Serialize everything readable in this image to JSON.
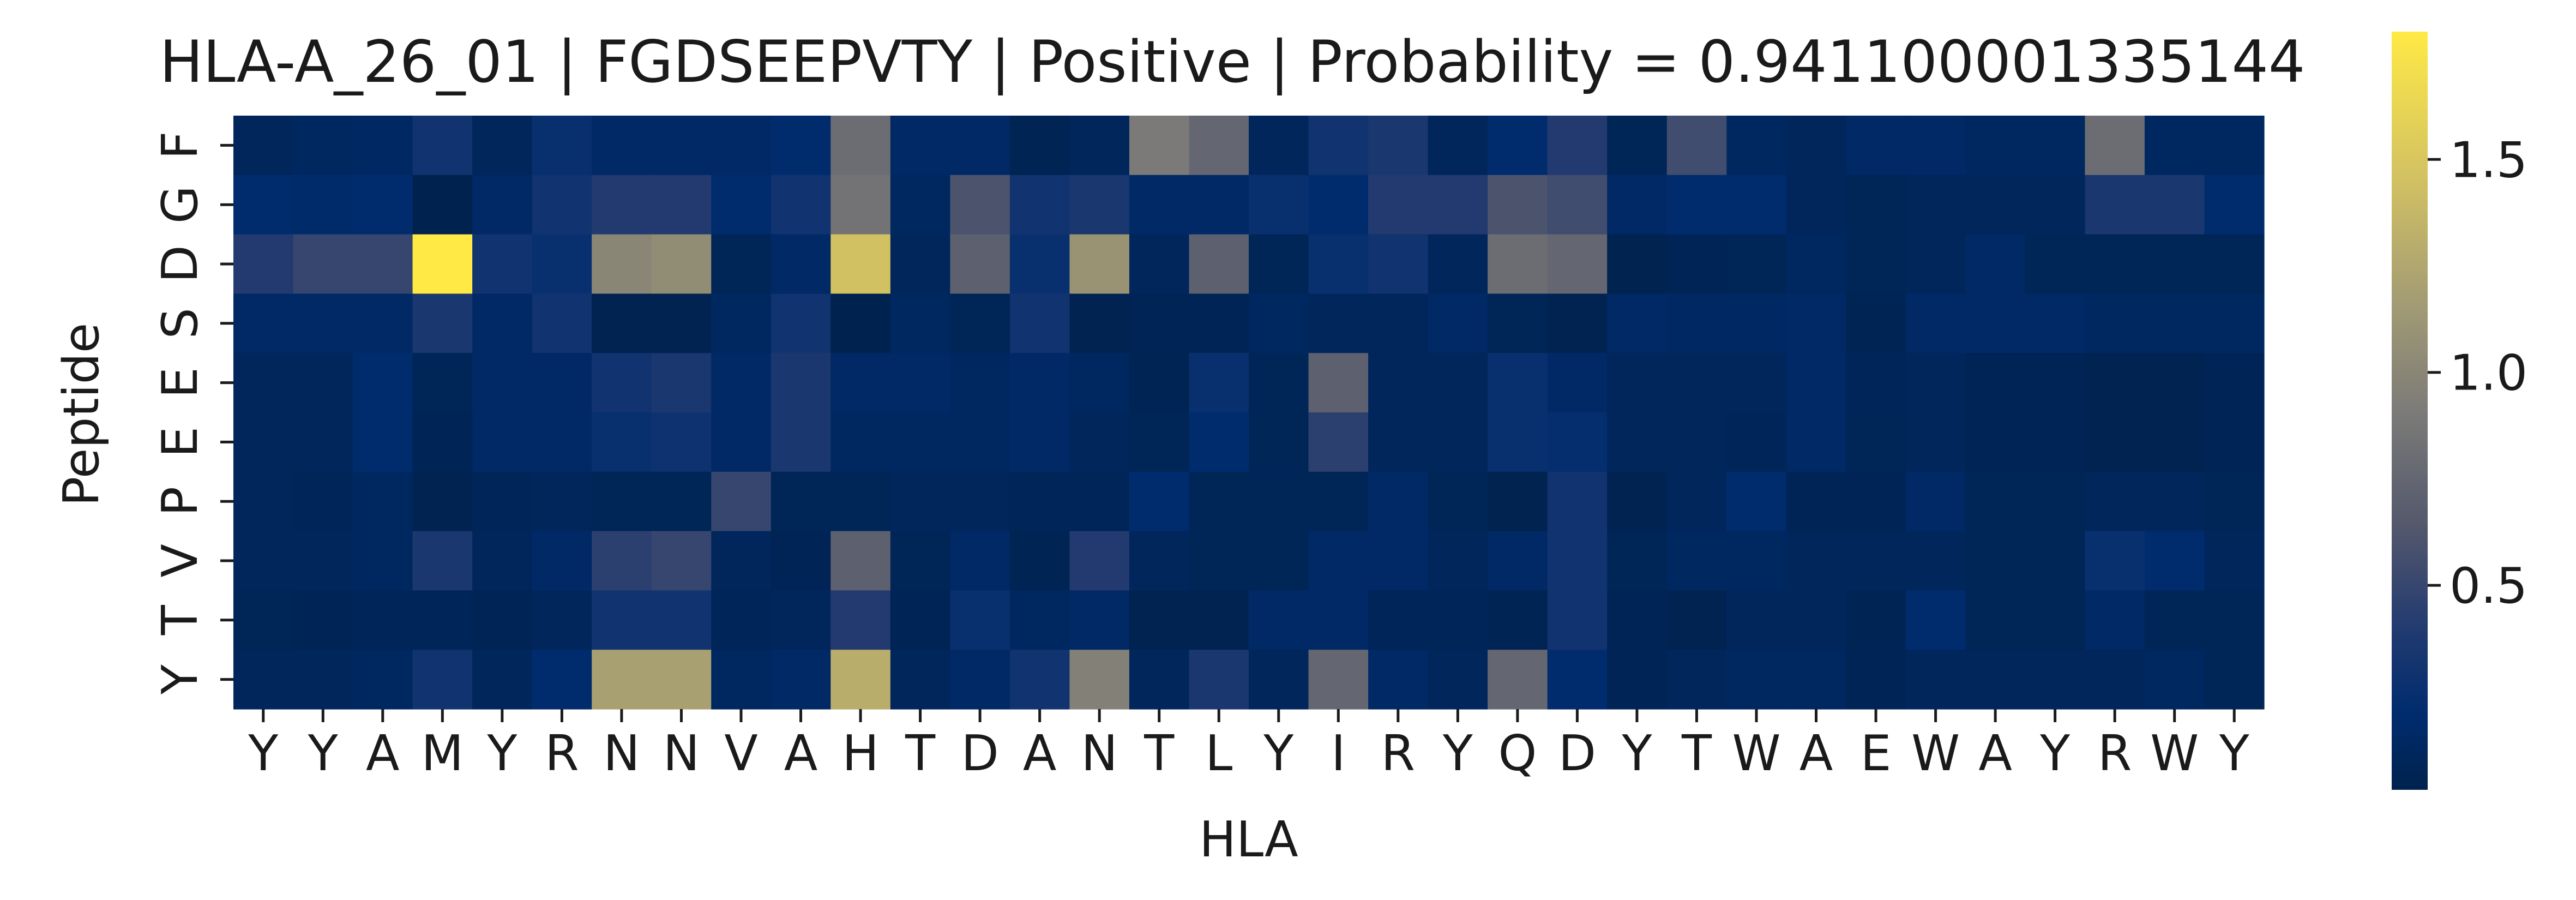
{
  "chart_data": {
    "type": "heatmap",
    "title": "HLA-A_26_01 | FGDSEEPVTY | Positive | Probability = 0.941100001335144",
    "xlabel": "HLA",
    "ylabel": "Peptide",
    "x_labels": [
      "Y",
      "Y",
      "A",
      "M",
      "Y",
      "R",
      "N",
      "N",
      "V",
      "A",
      "H",
      "T",
      "D",
      "A",
      "N",
      "T",
      "L",
      "Y",
      "I",
      "R",
      "Y",
      "Q",
      "D",
      "Y",
      "T",
      "W",
      "A",
      "E",
      "W",
      "A",
      "Y",
      "R",
      "W",
      "Y"
    ],
    "y_labels": [
      "F",
      "G",
      "D",
      "S",
      "E",
      "E",
      "P",
      "V",
      "T",
      "Y"
    ],
    "colorbar": {
      "colormap": "cividis",
      "vmin": 0.02,
      "vmax": 1.8,
      "ticks": [
        0.5,
        1.0,
        1.5
      ],
      "tick_labels": [
        "0.5",
        "1.0",
        "1.5"
      ]
    },
    "values": [
      [
        0.1,
        0.12,
        0.13,
        0.3,
        0.1,
        0.25,
        0.15,
        0.15,
        0.15,
        0.2,
        0.8,
        0.15,
        0.15,
        0.05,
        0.1,
        0.9,
        0.75,
        0.1,
        0.3,
        0.35,
        0.1,
        0.2,
        0.4,
        0.07,
        0.55,
        0.12,
        0.1,
        0.15,
        0.15,
        0.12,
        0.12,
        0.8,
        0.12,
        0.12
      ],
      [
        0.2,
        0.18,
        0.2,
        0.02,
        0.15,
        0.3,
        0.4,
        0.4,
        0.2,
        0.3,
        0.85,
        0.12,
        0.6,
        0.3,
        0.35,
        0.15,
        0.15,
        0.25,
        0.2,
        0.4,
        0.4,
        0.6,
        0.55,
        0.15,
        0.2,
        0.2,
        0.1,
        0.07,
        0.1,
        0.1,
        0.1,
        0.35,
        0.35,
        0.2
      ],
      [
        0.4,
        0.5,
        0.5,
        1.8,
        0.3,
        0.25,
        1.0,
        1.05,
        0.07,
        0.15,
        1.45,
        0.1,
        0.7,
        0.25,
        1.1,
        0.1,
        0.7,
        0.07,
        0.25,
        0.3,
        0.1,
        0.8,
        0.75,
        0.03,
        0.06,
        0.07,
        0.12,
        0.07,
        0.1,
        0.15,
        0.07,
        0.07,
        0.07,
        0.07
      ],
      [
        0.15,
        0.15,
        0.15,
        0.35,
        0.15,
        0.3,
        0.04,
        0.04,
        0.12,
        0.3,
        0.02,
        0.12,
        0.07,
        0.3,
        0.04,
        0.06,
        0.06,
        0.12,
        0.1,
        0.1,
        0.15,
        0.07,
        0.04,
        0.15,
        0.13,
        0.13,
        0.15,
        0.05,
        0.15,
        0.15,
        0.15,
        0.12,
        0.12,
        0.12
      ],
      [
        0.1,
        0.1,
        0.2,
        0.07,
        0.15,
        0.15,
        0.3,
        0.35,
        0.15,
        0.35,
        0.15,
        0.15,
        0.12,
        0.15,
        0.12,
        0.05,
        0.25,
        0.07,
        0.7,
        0.1,
        0.1,
        0.25,
        0.15,
        0.1,
        0.1,
        0.1,
        0.15,
        0.08,
        0.1,
        0.06,
        0.06,
        0.04,
        0.04,
        0.06
      ],
      [
        0.1,
        0.1,
        0.2,
        0.06,
        0.15,
        0.15,
        0.25,
        0.28,
        0.15,
        0.35,
        0.12,
        0.12,
        0.12,
        0.15,
        0.1,
        0.07,
        0.2,
        0.07,
        0.45,
        0.1,
        0.1,
        0.25,
        0.22,
        0.1,
        0.1,
        0.08,
        0.15,
        0.07,
        0.1,
        0.06,
        0.06,
        0.04,
        0.04,
        0.06
      ],
      [
        0.1,
        0.08,
        0.12,
        0.04,
        0.08,
        0.1,
        0.07,
        0.07,
        0.5,
        0.07,
        0.07,
        0.1,
        0.1,
        0.08,
        0.08,
        0.2,
        0.07,
        0.07,
        0.07,
        0.15,
        0.07,
        0.03,
        0.3,
        0.04,
        0.1,
        0.2,
        0.06,
        0.06,
        0.15,
        0.07,
        0.07,
        0.1,
        0.1,
        0.07
      ],
      [
        0.1,
        0.1,
        0.12,
        0.35,
        0.1,
        0.15,
        0.45,
        0.5,
        0.1,
        0.06,
        0.7,
        0.07,
        0.15,
        0.05,
        0.4,
        0.1,
        0.07,
        0.07,
        0.15,
        0.15,
        0.1,
        0.15,
        0.3,
        0.07,
        0.12,
        0.12,
        0.1,
        0.1,
        0.1,
        0.07,
        0.07,
        0.25,
        0.2,
        0.1
      ],
      [
        0.07,
        0.06,
        0.08,
        0.08,
        0.06,
        0.1,
        0.3,
        0.3,
        0.08,
        0.1,
        0.4,
        0.06,
        0.25,
        0.12,
        0.15,
        0.04,
        0.04,
        0.15,
        0.15,
        0.08,
        0.08,
        0.05,
        0.3,
        0.06,
        0.04,
        0.1,
        0.1,
        0.05,
        0.2,
        0.07,
        0.07,
        0.15,
        0.07,
        0.07
      ],
      [
        0.1,
        0.1,
        0.12,
        0.3,
        0.1,
        0.2,
        1.2,
        1.2,
        0.12,
        0.15,
        1.3,
        0.1,
        0.15,
        0.3,
        0.95,
        0.1,
        0.35,
        0.1,
        0.75,
        0.15,
        0.1,
        0.75,
        0.2,
        0.06,
        0.1,
        0.12,
        0.12,
        0.06,
        0.1,
        0.1,
        0.1,
        0.1,
        0.12,
        0.07
      ]
    ]
  }
}
